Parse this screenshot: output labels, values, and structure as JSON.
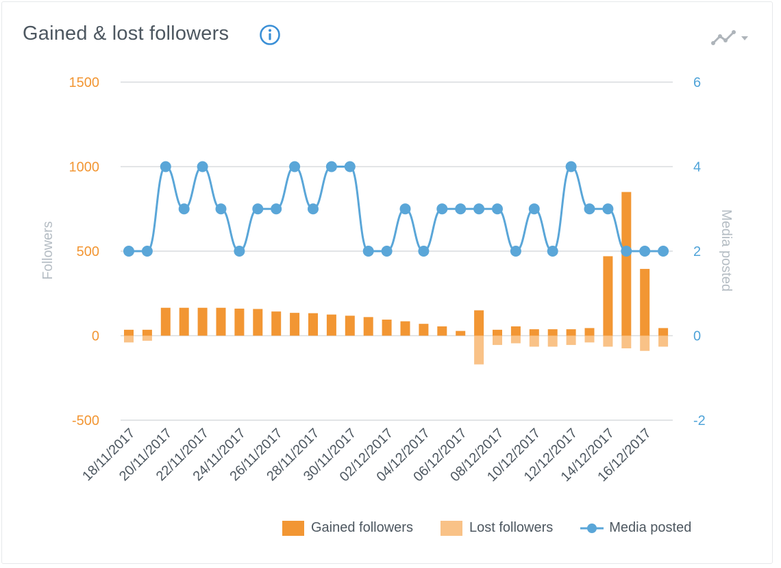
{
  "header": {
    "title": "Gained & lost followers",
    "info_icon": "info-circle-icon",
    "chart_type_icon": "line-chart-dropdown-icon"
  },
  "colors": {
    "gained": "#f29633",
    "lost": "#f9c287",
    "media": "#5aa6d8",
    "left_axis": "#f29633",
    "right_axis": "#4fa3d8",
    "grid": "#d9dcde"
  },
  "chart_data": {
    "type": "bar",
    "x": [
      "18/11/2017",
      "19/11/2017",
      "20/11/2017",
      "21/11/2017",
      "22/11/2017",
      "23/11/2017",
      "24/11/2017",
      "25/11/2017",
      "26/11/2017",
      "27/11/2017",
      "28/11/2017",
      "29/11/2017",
      "30/11/2017",
      "01/12/2017",
      "02/12/2017",
      "03/12/2017",
      "04/12/2017",
      "05/12/2017",
      "06/12/2017",
      "07/12/2017",
      "08/12/2017",
      "09/12/2017",
      "10/12/2017",
      "11/12/2017",
      "12/12/2017",
      "13/12/2017",
      "14/12/2017",
      "15/12/2017",
      "16/12/2017",
      "17/12/2017"
    ],
    "x_tick_labels": [
      "18/11/2017",
      "20/11/2017",
      "22/11/2017",
      "24/11/2017",
      "26/11/2017",
      "28/11/2017",
      "30/11/2017",
      "02/12/2017",
      "04/12/2017",
      "06/12/2017",
      "08/12/2017",
      "10/12/2017",
      "12/12/2017",
      "14/12/2017",
      "16/12/2017"
    ],
    "series": [
      {
        "name": "Gained followers",
        "type": "bar",
        "axis": "left",
        "values": [
          35,
          35,
          165,
          165,
          165,
          165,
          160,
          158,
          143,
          135,
          133,
          125,
          118,
          110,
          95,
          85,
          70,
          55,
          28,
          150,
          35,
          55,
          38,
          38,
          38,
          45,
          470,
          850,
          395,
          45
        ]
      },
      {
        "name": "Lost followers",
        "type": "bar",
        "axis": "left",
        "values": [
          -40,
          -30,
          0,
          0,
          0,
          0,
          0,
          0,
          0,
          0,
          0,
          0,
          0,
          0,
          0,
          0,
          0,
          0,
          0,
          -170,
          -55,
          -45,
          -65,
          -65,
          -55,
          -40,
          -65,
          -75,
          -90,
          -65
        ]
      },
      {
        "name": "Media posted",
        "type": "line",
        "axis": "right",
        "values": [
          2,
          2,
          4,
          3,
          4,
          3,
          2,
          3,
          3,
          4,
          3,
          4,
          4,
          2,
          2,
          3,
          2,
          3,
          3,
          3,
          3,
          2,
          3,
          2,
          4,
          3,
          3,
          2,
          2,
          2
        ]
      }
    ],
    "y_left": {
      "label": "Followers",
      "ticks": [
        "1500",
        "1000",
        "500",
        "0",
        "-500"
      ],
      "min": -500,
      "max": 1500
    },
    "y_right": {
      "label": "Media posted",
      "ticks": [
        "6",
        "4",
        "2",
        "0",
        "-2"
      ],
      "min": -2,
      "max": 6
    },
    "grid": true,
    "legend_position": "bottom-right"
  }
}
